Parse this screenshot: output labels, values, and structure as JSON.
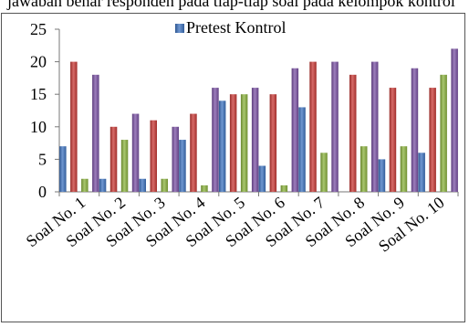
{
  "top_text": "jawaban benar responden pada tiap-tiap soal pada kelompok kontrol",
  "chart_data": {
    "type": "bar",
    "title": "",
    "xlabel": "",
    "ylabel": "",
    "ylim": [
      0,
      25
    ],
    "yticks": [
      0,
      5,
      10,
      15,
      20,
      25
    ],
    "grid": false,
    "legend": {
      "placement": "top",
      "entries": [
        {
          "label": "Pretest Kontrol",
          "color": "#3f74c1"
        }
      ]
    },
    "categories": [
      "Soal No. 1",
      "Soal No. 2",
      "Soal No. 3",
      "Soal No. 4",
      "Soal No. 5",
      "Soal No. 6",
      "Soal No. 7",
      "Soal No. 8",
      "Soal No. 9",
      "Soal No. 10"
    ],
    "series": [
      {
        "name": "Pretest Kontrol",
        "color": "#3f74c1",
        "values": [
          7,
          2,
          2,
          8,
          14,
          4,
          13,
          0,
          5,
          6
        ]
      },
      {
        "color": "#c93a36",
        "values": [
          20,
          10,
          11,
          12,
          15,
          15,
          20,
          18,
          16,
          16
        ]
      },
      {
        "color": "#8cb43f",
        "values": [
          2,
          8,
          2,
          1,
          15,
          1,
          6,
          7,
          7,
          18
        ]
      },
      {
        "color": "#7c53a6",
        "values": [
          18,
          12,
          10,
          16,
          16,
          19,
          20,
          20,
          19,
          22
        ]
      }
    ]
  }
}
